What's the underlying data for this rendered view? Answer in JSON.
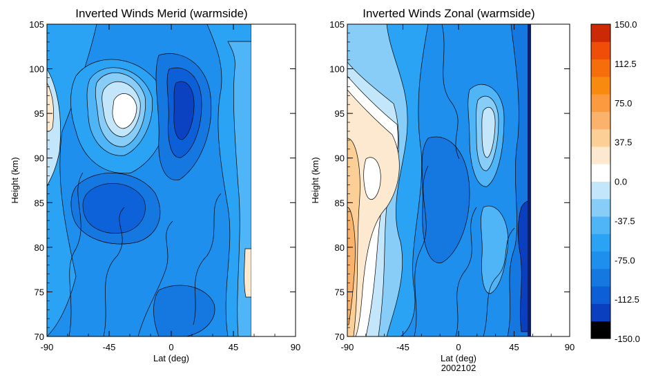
{
  "chart_data": [
    {
      "type": "heatmap",
      "title": "Inverted Winds Merid (warmside)",
      "xlabel": "Lat (deg)",
      "ylabel": "Height (km)",
      "xlim": [
        -90,
        90
      ],
      "ylim": [
        70,
        105
      ],
      "xticks": [
        "-90",
        "-45",
        "0",
        "45",
        "90"
      ],
      "yticks": [
        "70",
        "75",
        "80",
        "85",
        "90",
        "95",
        "100",
        "105"
      ],
      "data_lat_range": [
        -90,
        58
      ],
      "features": [
        {
          "lat": -35,
          "height": 96,
          "value": 0
        },
        {
          "lat": -33,
          "height": 93,
          "value": -20
        },
        {
          "lat": 8,
          "height": 95,
          "value": -110
        },
        {
          "lat": -28,
          "height": 84,
          "value": -100
        },
        {
          "lat": -88,
          "height": 95,
          "value": 20
        },
        {
          "lat": 54,
          "height": 76,
          "value": 10
        },
        {
          "lat": 0,
          "height": 72,
          "value": -90
        }
      ]
    },
    {
      "type": "heatmap",
      "title": "Inverted Winds Zonal (warmside)",
      "xlabel": "Lat (deg)",
      "sublabel": "2002102",
      "ylabel": "Height (km)",
      "xlim": [
        -90,
        90
      ],
      "ylim": [
        70,
        105
      ],
      "xticks": [
        "-90",
        "-45",
        "0",
        "45",
        "90"
      ],
      "yticks": [
        "70",
        "75",
        "80",
        "85",
        "90",
        "95",
        "100",
        "105"
      ],
      "data_lat_range": [
        -90,
        55
      ],
      "features": [
        {
          "lat": -83,
          "height": 78,
          "value": 60
        },
        {
          "lat": -75,
          "height": 90,
          "value": 30
        },
        {
          "lat": -65,
          "height": 95,
          "value": 10
        },
        {
          "lat": 28,
          "height": 93,
          "value": 0
        },
        {
          "lat": 50,
          "height": 78,
          "value": -140
        },
        {
          "lat": 10,
          "height": 85,
          "value": -90
        }
      ]
    }
  ],
  "colorbar": {
    "min": -150.0,
    "max": 150.0,
    "labels": [
      "150.0",
      "112.5",
      "75.0",
      "37.5",
      "0.0",
      "-37.5",
      "-75.0",
      "-112.5",
      "-150.0"
    ],
    "colors": [
      "#000000",
      "#0a3fbf",
      "#0d5fd8",
      "#1577e0",
      "#1e8fec",
      "#2aa3f4",
      "#4fb5f6",
      "#87cdf8",
      "#c4e6fb",
      "#ffffff",
      "#fde9cf",
      "#fccf97",
      "#fbb26a",
      "#fb9a3e",
      "#f98a10",
      "#f66d0c",
      "#f04e08",
      "#cc2a04"
    ]
  }
}
